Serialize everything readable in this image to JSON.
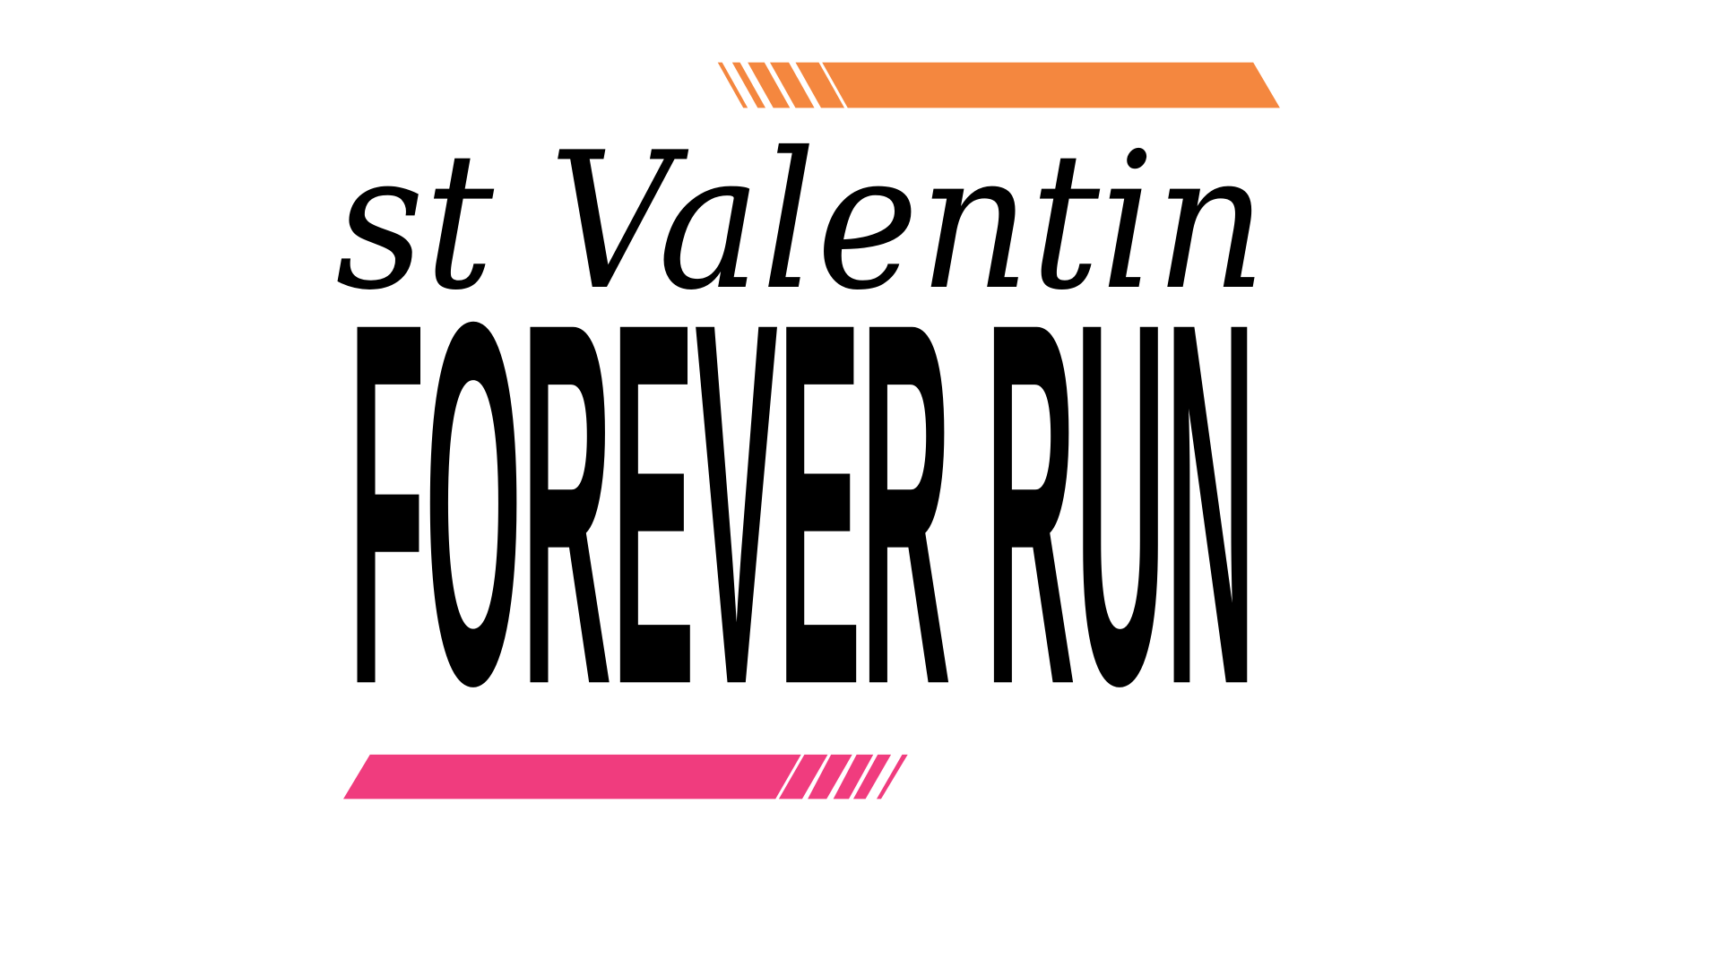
{
  "script_title": "st Valentin",
  "main_title": "FOREVER RUN"
}
